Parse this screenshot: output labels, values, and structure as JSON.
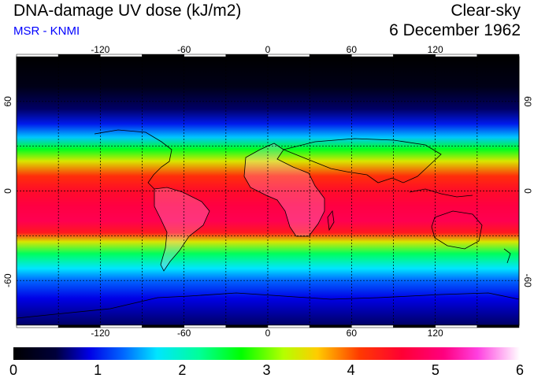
{
  "header": {
    "title": "DNA-damage UV dose (kJ/m2)",
    "subtitle": "MSR - KNMI",
    "mode": "Clear-sky",
    "date": "6 December 1962"
  },
  "colors": {
    "subtitle": "#0000ff",
    "grid": "#000000"
  },
  "map": {
    "lon_ticks": [
      "-120",
      "-60",
      "0",
      "60",
      "120"
    ],
    "lat_ticks_left": [
      "60",
      "0",
      "-60"
    ],
    "lat_ticks_right": [
      "60",
      "0",
      "-60"
    ],
    "lon_values": [
      -120,
      -60,
      0,
      60,
      120
    ],
    "lat_values": [
      60,
      0,
      -60
    ],
    "lon_range": [
      -180,
      180
    ],
    "lat_range": [
      -90,
      90
    ],
    "grid_lon_step": 30,
    "grid_lat_step": 30
  },
  "colorbar": {
    "labels": [
      "0",
      "1",
      "2",
      "3",
      "4",
      "5",
      "6"
    ],
    "range": [
      0,
      6
    ],
    "stops": [
      {
        "v": 0.0,
        "c": "#000000"
      },
      {
        "v": 0.5,
        "c": "#00003a"
      },
      {
        "v": 0.9,
        "c": "#0000e6"
      },
      {
        "v": 1.3,
        "c": "#0066ff"
      },
      {
        "v": 1.7,
        "c": "#00e5ff"
      },
      {
        "v": 2.2,
        "c": "#00ff99"
      },
      {
        "v": 2.7,
        "c": "#00ff00"
      },
      {
        "v": 3.2,
        "c": "#b4ff00"
      },
      {
        "v": 3.6,
        "c": "#ffcc00"
      },
      {
        "v": 4.1,
        "c": "#ff3a00"
      },
      {
        "v": 4.6,
        "c": "#ff0033"
      },
      {
        "v": 5.1,
        "c": "#ff007f"
      },
      {
        "v": 5.5,
        "c": "#ff40e0"
      },
      {
        "v": 6.0,
        "c": "#ffffff"
      }
    ]
  }
}
